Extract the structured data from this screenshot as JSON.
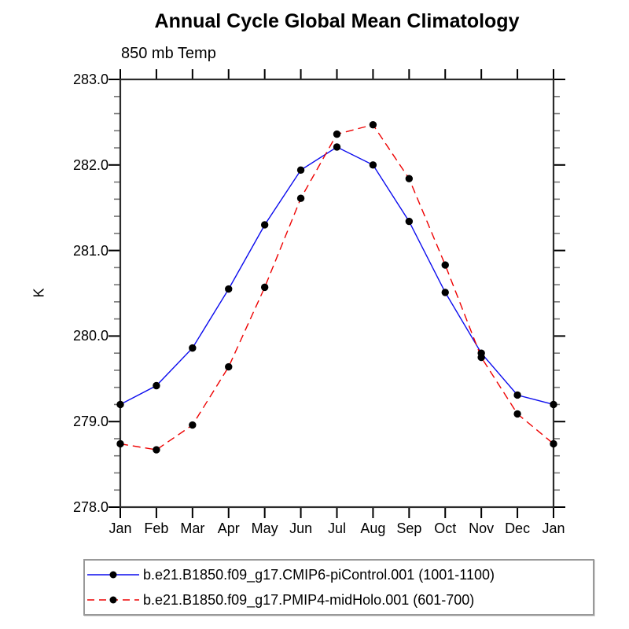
{
  "chart_data": {
    "type": "line",
    "title": "Annual Cycle Global Mean Climatology",
    "subtitle": "850 mb Temp",
    "ylabel": "K",
    "categories": [
      "Jan",
      "Feb",
      "Mar",
      "Apr",
      "May",
      "Jun",
      "Jul",
      "Aug",
      "Sep",
      "Oct",
      "Nov",
      "Dec",
      "Jan"
    ],
    "ylim": [
      278.0,
      283.0
    ],
    "y_major_step": 1.0,
    "y_minor_step": 0.2,
    "y_tick_labels": [
      "283.0",
      "282.0",
      "281.0",
      "280.0",
      "279.0",
      "278.0"
    ],
    "grid": "off",
    "legend_position": "bottom-box",
    "axis_color": "#2b2b2b",
    "major_tick_color": "#000000",
    "minor_tick_color": "#777777",
    "marker_color": "#000000",
    "series": [
      {
        "name": "b.e21.B1850.f09_g17.CMIP6-piControl.001 (1001-1100)",
        "color": "#0b0bee",
        "line_style": "solid",
        "marker": "filled-circle",
        "values": [
          279.2,
          279.42,
          279.86,
          280.55,
          281.3,
          281.94,
          282.21,
          282.0,
          281.34,
          280.51,
          279.8,
          279.31,
          279.2
        ]
      },
      {
        "name": "b.e21.B1850.f09_g17.PMIP4-midHolo.001 (601-700)",
        "color": "#ee0000",
        "line_style": "dashed",
        "marker": "filled-circle",
        "values": [
          278.74,
          278.67,
          278.96,
          279.64,
          280.57,
          281.61,
          282.36,
          282.47,
          281.84,
          280.83,
          279.75,
          279.09,
          278.74
        ]
      }
    ]
  }
}
